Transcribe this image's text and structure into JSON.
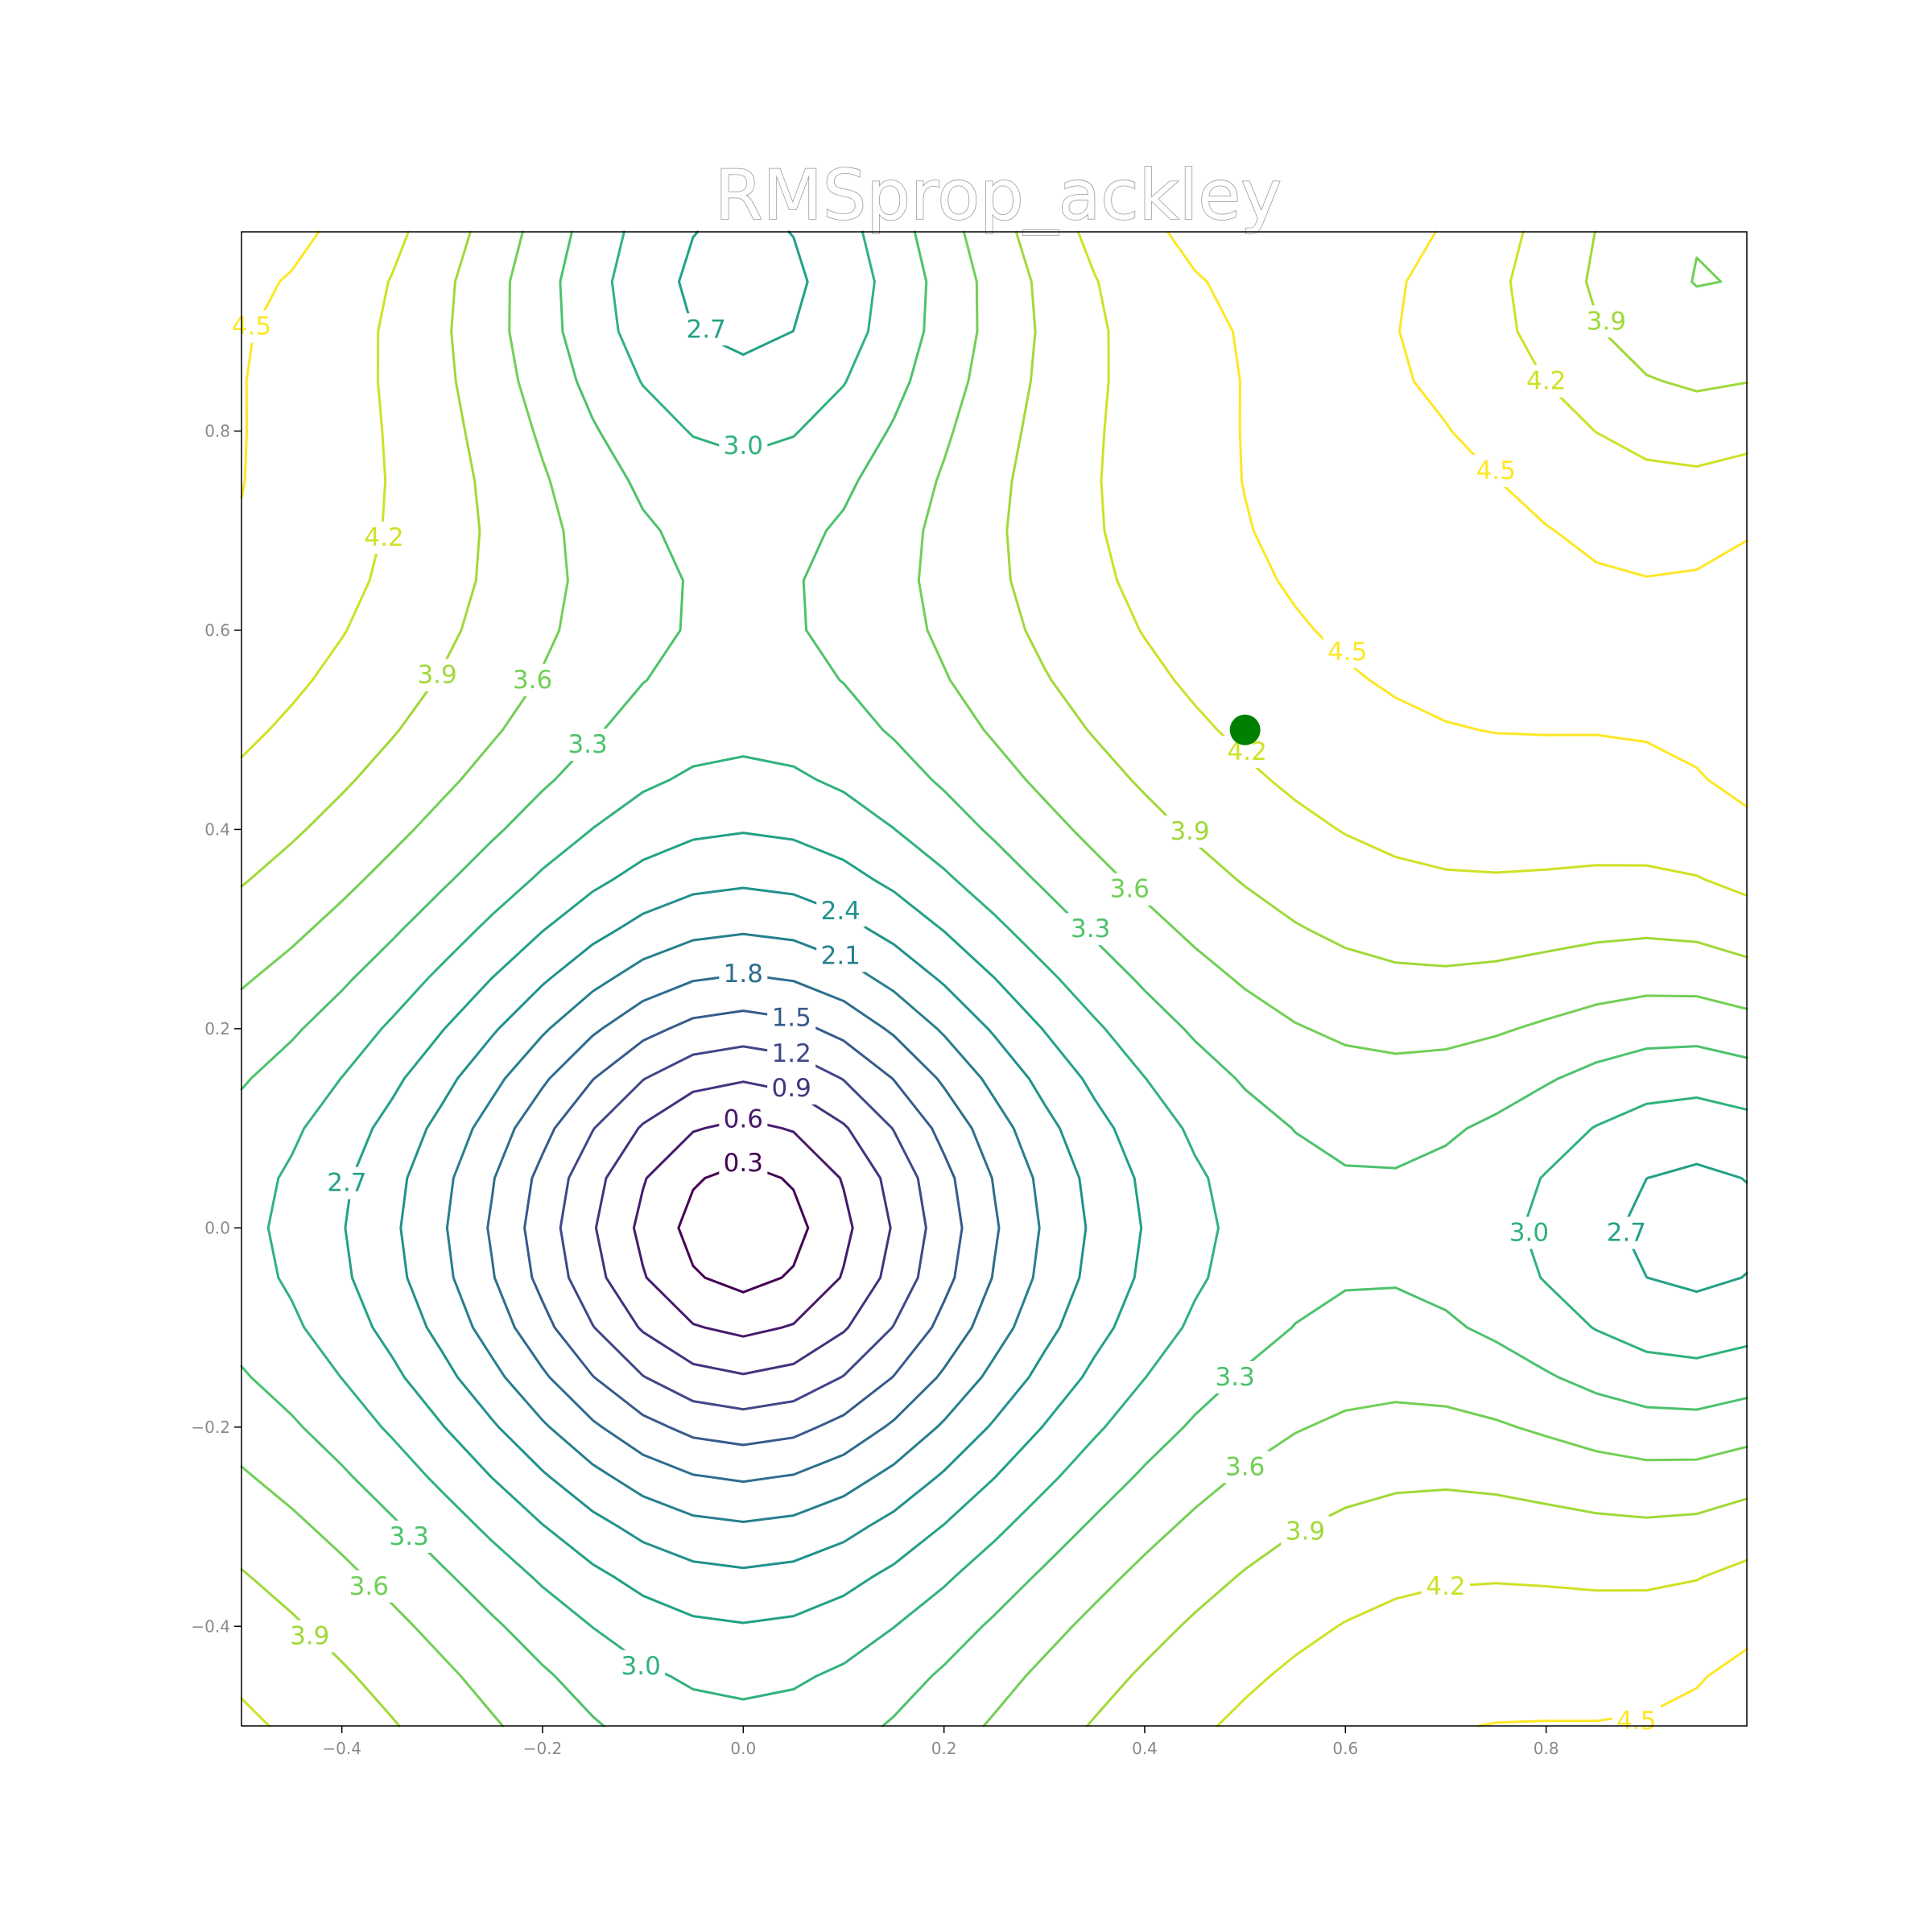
{
  "chart_data": {
    "type": "contour",
    "title": "RMSprop_ackley",
    "function": "ackley",
    "xlabel": "",
    "ylabel": "",
    "xlim": [
      -0.5,
      1.0
    ],
    "ylim": [
      -0.5,
      1.0
    ],
    "x_ticks": [
      -0.4,
      -0.2,
      0.0,
      0.2,
      0.4,
      0.6,
      0.8
    ],
    "y_ticks": [
      -0.4,
      -0.2,
      0.0,
      0.2,
      0.4,
      0.6,
      0.8
    ],
    "x_tick_labels": [
      "−0.4",
      "−0.2",
      "0.0",
      "0.2",
      "0.4",
      "0.6",
      "0.8"
    ],
    "y_tick_labels": [
      "−0.4",
      "−0.2",
      "0.0",
      "0.2",
      "0.4",
      "0.6",
      "0.8"
    ],
    "contour_levels": [
      0.3,
      0.6,
      0.9,
      1.2,
      1.5,
      1.8,
      2.1,
      2.4,
      2.7,
      3.0,
      3.3,
      3.6,
      3.9,
      4.2,
      4.5
    ],
    "colormap": "viridis",
    "grid": false,
    "contour_labels": [
      {
        "text": "0.3",
        "x": 0.0,
        "y": 0.065
      },
      {
        "text": "0.6",
        "x": 0.0,
        "y": 0.109
      },
      {
        "text": "0.9",
        "x": 0.048,
        "y": 0.14
      },
      {
        "text": "1.2",
        "x": 0.048,
        "y": 0.175
      },
      {
        "text": "1.5",
        "x": 0.048,
        "y": 0.211
      },
      {
        "text": "1.8",
        "x": 0.0,
        "y": 0.255
      },
      {
        "text": "2.1",
        "x": 0.097,
        "y": 0.273
      },
      {
        "text": "2.4",
        "x": 0.097,
        "y": 0.318
      },
      {
        "text": "2.7",
        "x": -0.395,
        "y": 0.045
      },
      {
        "text": "3.0",
        "x": -0.102,
        "y": -0.44
      },
      {
        "text": "3.3",
        "x": -0.333,
        "y": -0.31
      },
      {
        "text": "3.6",
        "x": -0.373,
        "y": -0.36
      },
      {
        "text": "3.9",
        "x": -0.432,
        "y": -0.41
      },
      {
        "text": "2.7",
        "x": -0.037,
        "y": 0.902
      },
      {
        "text": "3.0",
        "x": 0.0,
        "y": 0.785
      },
      {
        "text": "3.3",
        "x": -0.155,
        "y": 0.485
      },
      {
        "text": "3.6",
        "x": -0.21,
        "y": 0.55
      },
      {
        "text": "3.9",
        "x": -0.305,
        "y": 0.555
      },
      {
        "text": "4.2",
        "x": -0.358,
        "y": 0.693
      },
      {
        "text": "4.5",
        "x": -0.49,
        "y": 0.905
      },
      {
        "text": "3.3",
        "x": 0.346,
        "y": 0.3
      },
      {
        "text": "3.6",
        "x": 0.385,
        "y": 0.34
      },
      {
        "text": "3.9",
        "x": 0.445,
        "y": 0.398
      },
      {
        "text": "4.2",
        "x": 0.502,
        "y": 0.478
      },
      {
        "text": "4.5",
        "x": 0.602,
        "y": 0.578
      },
      {
        "text": "4.5",
        "x": 0.75,
        "y": 0.76
      },
      {
        "text": "4.2",
        "x": 0.8,
        "y": 0.85
      },
      {
        "text": "3.9",
        "x": 0.86,
        "y": 0.91
      },
      {
        "text": "3.3",
        "x": 0.49,
        "y": -0.15
      },
      {
        "text": "3.6",
        "x": 0.5,
        "y": -0.24
      },
      {
        "text": "3.9",
        "x": 0.56,
        "y": -0.305
      },
      {
        "text": "4.2",
        "x": 0.7,
        "y": -0.36
      },
      {
        "text": "4.5",
        "x": 0.89,
        "y": -0.495
      },
      {
        "text": "3.0",
        "x": 0.783,
        "y": -0.005
      },
      {
        "text": "2.7",
        "x": 0.88,
        "y": -0.005
      }
    ],
    "markers": [
      {
        "x": 0.5,
        "y": 0.5,
        "color": "#008000",
        "label": ""
      }
    ]
  },
  "colors": {
    "background": "#ffffff",
    "axes_frame": "#000000",
    "tick_label": "#8a8a8a",
    "marker": "#008000"
  }
}
